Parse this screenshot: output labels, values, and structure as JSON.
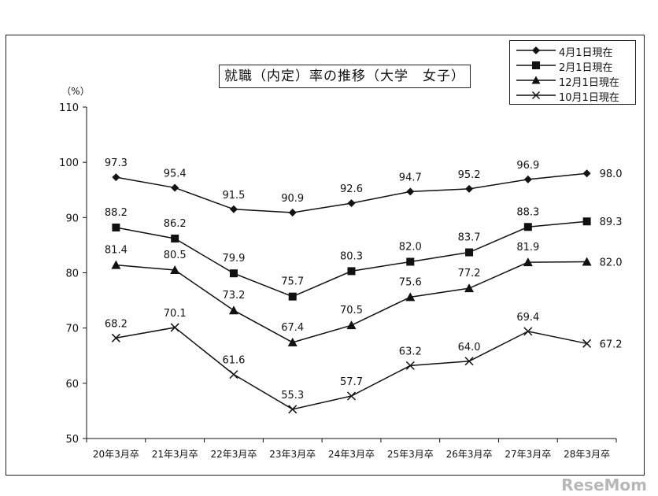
{
  "chart_data": {
    "type": "line",
    "title": "就職（内定）率の推移（大学　女子）",
    "ylabel": "（%）",
    "ylim": [
      50,
      110
    ],
    "yticks": [
      50,
      60,
      70,
      80,
      90,
      100,
      110
    ],
    "categories": [
      "20年3月卒",
      "21年3月卒",
      "22年3月卒",
      "23年3月卒",
      "24年3月卒",
      "25年3月卒",
      "26年3月卒",
      "27年3月卒",
      "28年3月卒"
    ],
    "legend_position": "top-right",
    "series": [
      {
        "name": "4月1日現在",
        "marker": "diamond",
        "values": [
          97.3,
          95.4,
          91.5,
          90.9,
          92.6,
          94.7,
          95.2,
          96.9,
          98.0
        ],
        "labels": [
          "97.3",
          "95.4",
          "91.5",
          "90.9",
          "92.6",
          "94.7",
          "95.2",
          "96.9",
          "98.0"
        ]
      },
      {
        "name": "2月1日現在",
        "marker": "square",
        "values": [
          88.2,
          86.2,
          79.9,
          75.7,
          80.3,
          82.0,
          83.7,
          88.3,
          89.3
        ],
        "labels": [
          "88.2",
          "86.2",
          "79.9",
          "75.7",
          "80.3",
          "82.0",
          "83.7",
          "88.3",
          "89.3"
        ]
      },
      {
        "name": "12月1日現在",
        "marker": "triangle",
        "values": [
          81.4,
          80.5,
          73.2,
          67.4,
          70.5,
          75.6,
          77.2,
          81.9,
          82.0
        ],
        "labels": [
          "81.4",
          "80.5",
          "73.2",
          "67.4",
          "70.5",
          "75.6",
          "77.2",
          "81.9",
          "82.0"
        ]
      },
      {
        "name": "10月1日現在",
        "marker": "x",
        "values": [
          68.2,
          70.1,
          61.6,
          55.3,
          57.7,
          63.2,
          64.0,
          69.4,
          67.2
        ],
        "labels": [
          "68.2",
          "70.1",
          "61.6",
          "55.3",
          "57.7",
          "63.2",
          "64.0",
          "69.4",
          "67.2"
        ]
      }
    ],
    "colors": {
      "line": "#111111",
      "watermark": "#b8b8b8"
    }
  },
  "watermark": "ReseMom"
}
